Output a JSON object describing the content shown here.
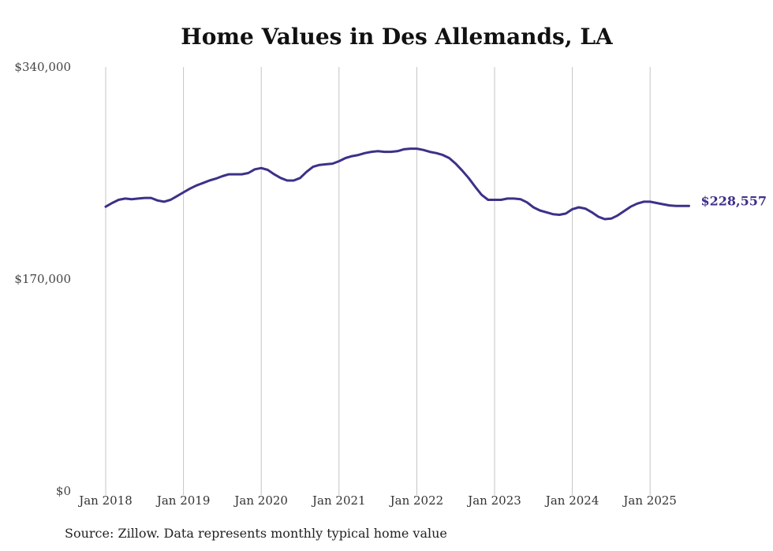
{
  "chart_data": {
    "type": "line",
    "title": "Home Values in Des Allemands, LA",
    "source": "Source: Zillow. Data represents monthly typical home value",
    "xlabel": "",
    "ylabel": "",
    "ylim": [
      0,
      340000
    ],
    "y_ticks": [
      {
        "value": 0,
        "label": "$0"
      },
      {
        "value": 170000,
        "label": "$170,000"
      },
      {
        "value": 340000,
        "label": "$340,000"
      }
    ],
    "x_ticks": [
      "Jan 2018",
      "Jan 2019",
      "Jan 2020",
      "Jan 2021",
      "Jan 2022",
      "Jan 2023",
      "Jan 2024",
      "Jan 2025"
    ],
    "grid": {
      "vertical": true,
      "horizontal": false
    },
    "line_color": "#3b3188",
    "end_label": "$228,557",
    "series": [
      {
        "dates": [
          "2018-01",
          "2018-02",
          "2018-03",
          "2018-04",
          "2018-05",
          "2018-06",
          "2018-07",
          "2018-08",
          "2018-09",
          "2018-10",
          "2018-11",
          "2018-12",
          "2019-01",
          "2019-02",
          "2019-03",
          "2019-04",
          "2019-05",
          "2019-06",
          "2019-07",
          "2019-08",
          "2019-09",
          "2019-10",
          "2019-11",
          "2019-12",
          "2020-01",
          "2020-02",
          "2020-03",
          "2020-04",
          "2020-05",
          "2020-06",
          "2020-07",
          "2020-08",
          "2020-09",
          "2020-10",
          "2020-11",
          "2020-12",
          "2021-01",
          "2021-02",
          "2021-03",
          "2021-04",
          "2021-05",
          "2021-06",
          "2021-07",
          "2021-08",
          "2021-09",
          "2021-10",
          "2021-11",
          "2021-12",
          "2022-01",
          "2022-02",
          "2022-03",
          "2022-04",
          "2022-05",
          "2022-06",
          "2022-07",
          "2022-08",
          "2022-09",
          "2022-10",
          "2022-11",
          "2022-12",
          "2023-01",
          "2023-02",
          "2023-03",
          "2023-04",
          "2023-05",
          "2023-06",
          "2023-07",
          "2023-08",
          "2023-09",
          "2023-10",
          "2023-11",
          "2023-12",
          "2024-01",
          "2024-02",
          "2024-03",
          "2024-04",
          "2024-05",
          "2024-06",
          "2024-07",
          "2024-08",
          "2024-09",
          "2024-10",
          "2024-11",
          "2024-12",
          "2025-01",
          "2025-02",
          "2025-03",
          "2025-04",
          "2025-05",
          "2025-06",
          "2025-07"
        ],
        "values": [
          228000,
          231000,
          233500,
          234500,
          234000,
          234500,
          235000,
          235000,
          233000,
          232000,
          233500,
          236500,
          239500,
          242500,
          245000,
          247000,
          249000,
          250500,
          252500,
          254000,
          254000,
          254000,
          255000,
          258000,
          259000,
          257500,
          254000,
          251000,
          249000,
          249000,
          251000,
          256000,
          260000,
          261500,
          262000,
          262500,
          264500,
          267000,
          268500,
          269500,
          271000,
          272000,
          272500,
          272000,
          272000,
          272500,
          274000,
          274500,
          274500,
          273500,
          272000,
          271000,
          269500,
          267000,
          262500,
          257000,
          251000,
          244000,
          237500,
          233500,
          233500,
          233500,
          234500,
          234500,
          234000,
          231500,
          227500,
          225000,
          223500,
          222000,
          221500,
          222500,
          226000,
          227500,
          226500,
          223500,
          220000,
          218000,
          218500,
          221000,
          224500,
          228000,
          230500,
          232000,
          232000,
          231000,
          230000,
          229000,
          228557,
          228557,
          228557
        ]
      }
    ]
  }
}
